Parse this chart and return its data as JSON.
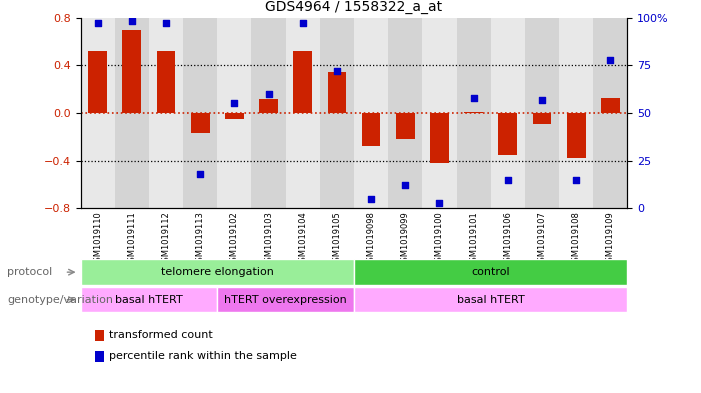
{
  "title": "GDS4964 / 1558322_a_at",
  "samples": [
    "GSM1019110",
    "GSM1019111",
    "GSM1019112",
    "GSM1019113",
    "GSM1019102",
    "GSM1019103",
    "GSM1019104",
    "GSM1019105",
    "GSM1019098",
    "GSM1019099",
    "GSM1019100",
    "GSM1019101",
    "GSM1019106",
    "GSM1019107",
    "GSM1019108",
    "GSM1019109"
  ],
  "bar_values": [
    0.52,
    0.7,
    0.52,
    -0.17,
    -0.05,
    0.12,
    0.52,
    0.34,
    -0.28,
    -0.22,
    -0.42,
    0.01,
    -0.35,
    -0.09,
    -0.38,
    0.13
  ],
  "dot_values": [
    97,
    98,
    97,
    18,
    55,
    60,
    97,
    72,
    5,
    12,
    3,
    58,
    15,
    57,
    15,
    78
  ],
  "ylim": [
    -0.8,
    0.8
  ],
  "yticks_left": [
    -0.8,
    -0.4,
    0.0,
    0.4,
    0.8
  ],
  "yticks_right": [
    0,
    25,
    50,
    75,
    100
  ],
  "bar_color": "#cc2200",
  "dot_color": "#0000cc",
  "hline_red_color": "#cc2200",
  "hline_black_color": "#000000",
  "protocol_groups": [
    {
      "label": "telomere elongation",
      "start": 0,
      "end": 7,
      "color": "#99ee99"
    },
    {
      "label": "control",
      "start": 8,
      "end": 15,
      "color": "#44cc44"
    }
  ],
  "genotype_groups": [
    {
      "label": "basal hTERT",
      "start": 0,
      "end": 3,
      "color": "#ffaaff"
    },
    {
      "label": "hTERT overexpression",
      "start": 4,
      "end": 7,
      "color": "#ee77ee"
    },
    {
      "label": "basal hTERT",
      "start": 8,
      "end": 15,
      "color": "#ffaaff"
    }
  ],
  "protocol_label": "protocol",
  "genotype_label": "genotype/variation",
  "legend_items": [
    {
      "label": "transformed count",
      "color": "#cc2200"
    },
    {
      "label": "percentile rank within the sample",
      "color": "#0000cc"
    }
  ],
  "bg_color": "#ffffff",
  "tick_label_color_left": "#cc2200",
  "tick_label_color_right": "#0000cc",
  "col_bg_color": "#e8e8e8"
}
